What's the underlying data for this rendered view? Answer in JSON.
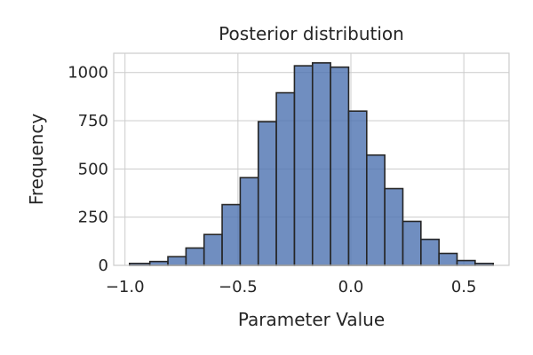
{
  "chart_data": {
    "type": "bar",
    "title": "Posterior distribution",
    "xlabel": "Parameter Value",
    "ylabel": "Frequency",
    "xlim": [
      -1.05,
      0.7
    ],
    "ylim": [
      0,
      1100
    ],
    "xticks": [
      -1.0,
      -0.5,
      0.0,
      0.5
    ],
    "xtick_labels": [
      "−1.0",
      "−0.5",
      "0.0",
      "0.5"
    ],
    "yticks": [
      0,
      250,
      500,
      750,
      1000
    ],
    "ytick_labels": [
      "0",
      "250",
      "500",
      "750",
      "1000"
    ],
    "grid": true,
    "bar_color": "#4c72b0",
    "bin_edges": [
      -0.98,
      -0.89,
      -0.81,
      -0.73,
      -0.65,
      -0.57,
      -0.49,
      -0.41,
      -0.33,
      -0.25,
      -0.17,
      -0.09,
      -0.01,
      0.07,
      0.15,
      0.23,
      0.31,
      0.39,
      0.47,
      0.55,
      0.63
    ],
    "values": [
      10,
      20,
      45,
      90,
      160,
      315,
      455,
      745,
      895,
      1035,
      1050,
      1028,
      800,
      572,
      398,
      228,
      135,
      62,
      25,
      10
    ]
  }
}
